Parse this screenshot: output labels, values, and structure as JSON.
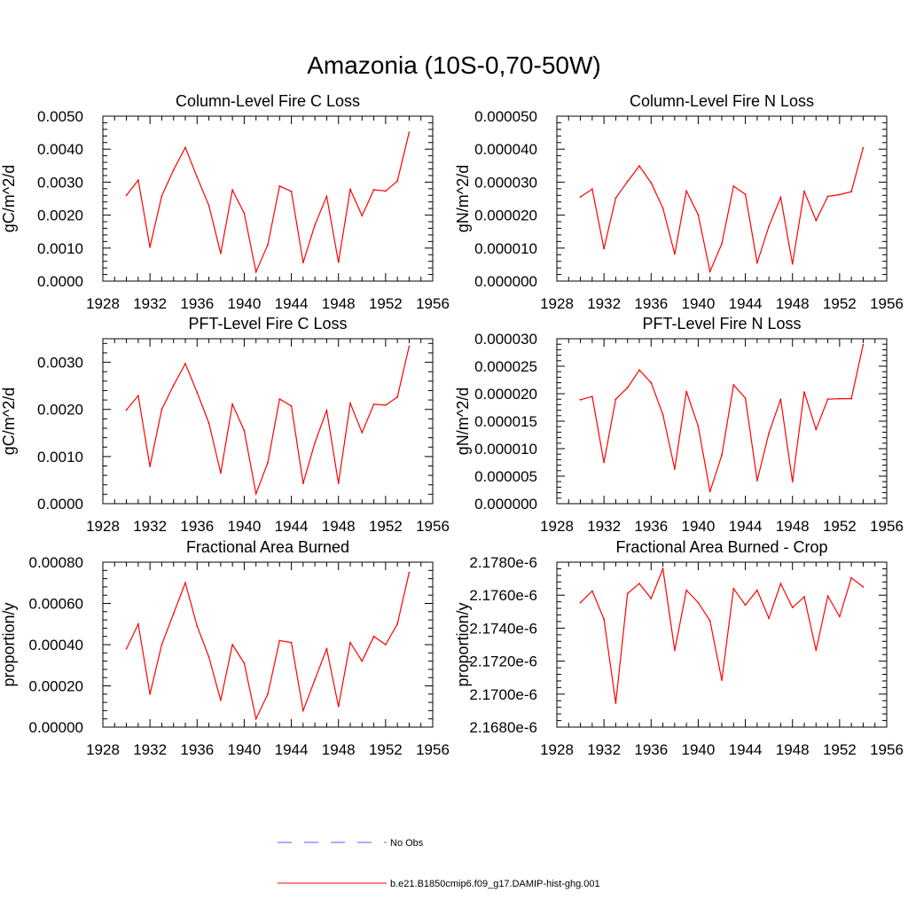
{
  "page": {
    "title": "Amazonia (10S-0,70-50W)"
  },
  "legend": {
    "position": "bottom-center",
    "entries": [
      {
        "label": "No Obs",
        "color": "#5a5aff",
        "dash": "dashed"
      },
      {
        "label": "b.e21.B1850cmip6.f09_g17.DAMIP-hist-ghg.001",
        "color": "#ff0000",
        "dash": "solid"
      }
    ]
  },
  "chart_data": [
    {
      "type": "line",
      "title": "Column-Level Fire C Loss",
      "xlabel": "",
      "ylabel": "gC/m^2/d",
      "xlim": [
        1928,
        1956
      ],
      "ylim": [
        0,
        0.005
      ],
      "xticks": [
        "1928",
        "1932",
        "1936",
        "1940",
        "1944",
        "1948",
        "1952",
        "1956"
      ],
      "yticks": [
        "0.0000",
        "0.0010",
        "0.0020",
        "0.0030",
        "0.0040",
        "0.0050"
      ],
      "grid": false,
      "series": [
        {
          "name": "b.e21.B1850cmip6.f09_g17.DAMIP-hist-ghg.001",
          "color": "#ff0000",
          "x": [
            1930,
            1931,
            1932,
            1933,
            1934,
            1935,
            1936,
            1937,
            1938,
            1939,
            1940,
            1941,
            1942,
            1943,
            1944,
            1945,
            1946,
            1947,
            1948,
            1949,
            1950,
            1951,
            1952,
            1953,
            1954
          ],
          "values": [
            0.0026,
            0.00306,
            0.00103,
            0.00258,
            0.00337,
            0.00405,
            0.00315,
            0.00229,
            0.00084,
            0.00276,
            0.00206,
            0.00028,
            0.0011,
            0.00288,
            0.00272,
            0.00056,
            0.0017,
            0.00257,
            0.00057,
            0.00278,
            0.00198,
            0.00277,
            0.00273,
            0.00303,
            0.00451
          ]
        }
      ]
    },
    {
      "type": "line",
      "title": "Column-Level Fire N Loss",
      "xlabel": "",
      "ylabel": "gN/m^2/d",
      "xlim": [
        1928,
        1956
      ],
      "ylim": [
        0,
        5e-05
      ],
      "xticks": [
        "1928",
        "1932",
        "1936",
        "1940",
        "1944",
        "1948",
        "1952",
        "1956"
      ],
      "yticks": [
        "0.000000",
        "0.000010",
        "0.000020",
        "0.000030",
        "0.000040",
        "0.000050"
      ],
      "grid": false,
      "series": [
        {
          "name": "b.e21.B1850cmip6.f09_g17.DAMIP-hist-ghg.001",
          "color": "#ff0000",
          "x": [
            1930,
            1931,
            1932,
            1933,
            1934,
            1935,
            1936,
            1937,
            1938,
            1939,
            1940,
            1941,
            1942,
            1943,
            1944,
            1945,
            1946,
            1947,
            1948,
            1949,
            1950,
            1951,
            1952,
            1953,
            1954
          ],
          "values": [
            2.55e-05,
            2.79e-05,
            9.8e-06,
            2.52e-05,
            3.02e-05,
            3.49e-05,
            2.98e-05,
            2.21e-05,
            8.2e-06,
            2.73e-05,
            2.01e-05,
            2.9e-06,
            1.13e-05,
            2.88e-05,
            2.63e-05,
            5.5e-06,
            1.66e-05,
            2.54e-05,
            5.2e-06,
            2.72e-05,
            1.84e-05,
            2.57e-05,
            2.62e-05,
            2.71e-05,
            4.04e-05
          ]
        }
      ]
    },
    {
      "type": "line",
      "title": "PFT-Level Fire C Loss",
      "xlabel": "",
      "ylabel": "gC/m^2/d",
      "xlim": [
        1928,
        1956
      ],
      "ylim": [
        0,
        0.0035
      ],
      "xticks": [
        "1928",
        "1932",
        "1936",
        "1940",
        "1944",
        "1948",
        "1952",
        "1956"
      ],
      "yticks": [
        "0.0000",
        "0.0010",
        "0.0020",
        "0.0030"
      ],
      "grid": false,
      "series": [
        {
          "name": "b.e21.B1850cmip6.f09_g17.DAMIP-hist-ghg.001",
          "color": "#ff0000",
          "x": [
            1930,
            1931,
            1932,
            1933,
            1934,
            1935,
            1936,
            1937,
            1938,
            1939,
            1940,
            1941,
            1942,
            1943,
            1944,
            1945,
            1946,
            1947,
            1948,
            1949,
            1950,
            1951,
            1952,
            1953,
            1954
          ],
          "values": [
            0.00199,
            0.00229,
            0.00079,
            0.002,
            0.00251,
            0.00297,
            0.00236,
            0.00171,
            0.00065,
            0.00211,
            0.00155,
            0.00021,
            0.00087,
            0.00222,
            0.00207,
            0.00043,
            0.00129,
            0.00198,
            0.00043,
            0.00213,
            0.00151,
            0.00211,
            0.00209,
            0.00226,
            0.00334
          ]
        }
      ]
    },
    {
      "type": "line",
      "title": "PFT-Level Fire N Loss",
      "xlabel": "",
      "ylabel": "gN/m^2/d",
      "xlim": [
        1928,
        1956
      ],
      "ylim": [
        0,
        3e-05
      ],
      "xticks": [
        "1928",
        "1932",
        "1936",
        "1940",
        "1944",
        "1948",
        "1952",
        "1956"
      ],
      "yticks": [
        "0.000000",
        "0.000005",
        "0.000010",
        "0.000015",
        "0.000020",
        "0.000025",
        "0.000030"
      ],
      "grid": false,
      "series": [
        {
          "name": "b.e21.B1850cmip6.f09_g17.DAMIP-hist-ghg.001",
          "color": "#ff0000",
          "x": [
            1930,
            1931,
            1932,
            1933,
            1934,
            1935,
            1936,
            1937,
            1938,
            1939,
            1940,
            1941,
            1942,
            1943,
            1944,
            1945,
            1946,
            1947,
            1948,
            1949,
            1950,
            1951,
            1952,
            1953,
            1954
          ],
          "values": [
            1.89e-05,
            1.95e-05,
            7.5e-06,
            1.9e-05,
            2.11e-05,
            2.43e-05,
            2.2e-05,
            1.62e-05,
            6.3e-06,
            2.04e-05,
            1.41e-05,
            2.2e-06,
            8.8e-06,
            2.16e-05,
            1.92e-05,
            4.2e-06,
            1.28e-05,
            1.9e-05,
            4e-06,
            2.03e-05,
            1.35e-05,
            1.9e-05,
            1.91e-05,
            1.91e-05,
            2.89e-05
          ]
        }
      ]
    },
    {
      "type": "line",
      "title": "Fractional Area Burned",
      "xlabel": "",
      "ylabel": "proportion/y",
      "xlim": [
        1928,
        1956
      ],
      "ylim": [
        0,
        0.0008
      ],
      "xticks": [
        "1928",
        "1932",
        "1936",
        "1940",
        "1944",
        "1948",
        "1952",
        "1956"
      ],
      "yticks": [
        "0.00000",
        "0.00020",
        "0.00040",
        "0.00060",
        "0.00080"
      ],
      "grid": false,
      "series": [
        {
          "name": "b.e21.B1850cmip6.f09_g17.DAMIP-hist-ghg.001",
          "color": "#ff0000",
          "x": [
            1930,
            1931,
            1932,
            1933,
            1934,
            1935,
            1936,
            1937,
            1938,
            1939,
            1940,
            1941,
            1942,
            1943,
            1944,
            1945,
            1946,
            1947,
            1948,
            1949,
            1950,
            1951,
            1952,
            1953,
            1954
          ],
          "values": [
            0.00038,
            0.0005,
            0.00016,
            0.0004,
            0.00055,
            0.0007,
            0.00049,
            0.00034,
            0.00013,
            0.0004,
            0.00031,
            4e-05,
            0.00016,
            0.00042,
            0.00041,
            8e-05,
            0.00023,
            0.00038,
            0.0001,
            0.00041,
            0.00032,
            0.00044,
            0.0004,
            0.0005,
            0.00075
          ]
        }
      ]
    },
    {
      "type": "line",
      "title": "Fractional Area Burned - Crop",
      "xlabel": "",
      "ylabel": "proportion/y",
      "xlim": [
        1928,
        1956
      ],
      "ylim": [
        2.168e-06,
        2.178e-06
      ],
      "xticks": [
        "1928",
        "1932",
        "1936",
        "1940",
        "1944",
        "1948",
        "1952",
        "1956"
      ],
      "yticks": [
        "2.1680e-6",
        "2.1700e-6",
        "2.1720e-6",
        "2.1740e-6",
        "2.1760e-6",
        "2.1780e-6"
      ],
      "grid": false,
      "series": [
        {
          "name": "b.e21.B1850cmip6.f09_g17.DAMIP-hist-ghg.001",
          "color": "#ff0000",
          "x": [
            1930,
            1931,
            1932,
            1933,
            1934,
            1935,
            1936,
            1937,
            1938,
            1939,
            1940,
            1941,
            1942,
            1943,
            1944,
            1945,
            1946,
            1947,
            1948,
            1949,
            1950,
            1951,
            1952,
            1953,
            1954
          ],
          "values": [
            2.17555e-06,
            2.17625e-06,
            2.17455e-06,
            2.16945e-06,
            2.1761e-06,
            2.1767e-06,
            2.1758e-06,
            2.1776e-06,
            2.17265e-06,
            2.1763e-06,
            2.17555e-06,
            2.17445e-06,
            2.17085e-06,
            2.1764e-06,
            2.1754e-06,
            2.1763e-06,
            2.1746e-06,
            2.1767e-06,
            2.17525e-06,
            2.1759e-06,
            2.17265e-06,
            2.17595e-06,
            2.1747e-06,
            2.17705e-06,
            2.1765e-06
          ]
        }
      ]
    }
  ]
}
